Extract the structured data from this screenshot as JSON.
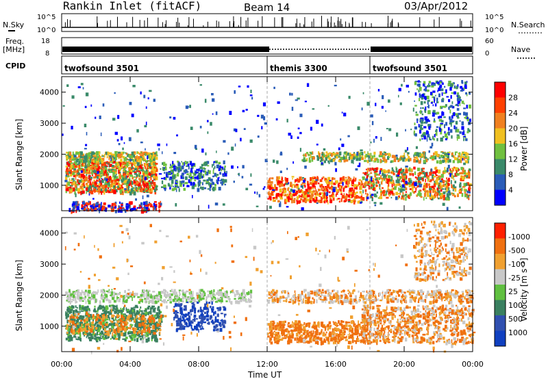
{
  "header": {
    "station": "Rankin Inlet (fitACF)",
    "beam": "Beam 14",
    "date": "03/Apr/2012"
  },
  "panels": {
    "nsky": {
      "label": "N.Sky",
      "ticks": [
        "10^5",
        "10^0"
      ],
      "right_label": "N.Search",
      "right_ticks": [
        "10^5",
        "10^0"
      ]
    },
    "freq": {
      "label_line1": "Freq.",
      "label_line2": "[MHz]",
      "ticks": [
        "18",
        "8"
      ],
      "right_label": "Nave",
      "right_ticks": [
        "60",
        "0"
      ]
    },
    "cpid": {
      "label": "CPID",
      "segments": [
        {
          "name": "twofsound 3501",
          "start_hour": 0
        },
        {
          "name": "themis 3300",
          "start_hour": 12
        },
        {
          "name": "twofsound 3501",
          "start_hour": 18
        }
      ]
    }
  },
  "chart_data": [
    {
      "type": "heatmap",
      "title": "",
      "ylabel": "Slant Range [km]",
      "xlabel": "",
      "xlim": [
        0,
        24
      ],
      "ylim": [
        180,
        4500
      ],
      "yticks": [
        "1000",
        "2000",
        "3000",
        "4000"
      ],
      "colorbar": {
        "label": "Power [dB]",
        "ticks": [
          "4",
          "8",
          "12",
          "16",
          "20",
          "24",
          "28"
        ]
      }
    },
    {
      "type": "heatmap",
      "title": "",
      "ylabel": "Slant Range [km]",
      "xlabel": "Time UT",
      "xlim": [
        0,
        24
      ],
      "ylim": [
        180,
        4500
      ],
      "yticks": [
        "1000",
        "2000",
        "3000",
        "4000"
      ],
      "xticks": [
        "00:00",
        "04:00",
        "08:00",
        "12:00",
        "16:00",
        "20:00",
        "00:00"
      ],
      "colorbar": {
        "label": "Velocity [m s⁻¹]",
        "ticks": [
          "1000",
          "500",
          "100",
          "25",
          "-25",
          "-100",
          "-500",
          "-1000"
        ]
      }
    }
  ],
  "colors": {
    "power": [
      "#0000ff",
      "#2a5cb8",
      "#3a8a6a",
      "#70c040",
      "#f0c020",
      "#f08020",
      "#ff4000",
      "#ff0000"
    ],
    "velocity": [
      "#1040c0",
      "#3050b0",
      "#3a8060",
      "#60c040",
      "#c8c8c8",
      "#f0a030",
      "#f07010",
      "#ff2000"
    ]
  }
}
